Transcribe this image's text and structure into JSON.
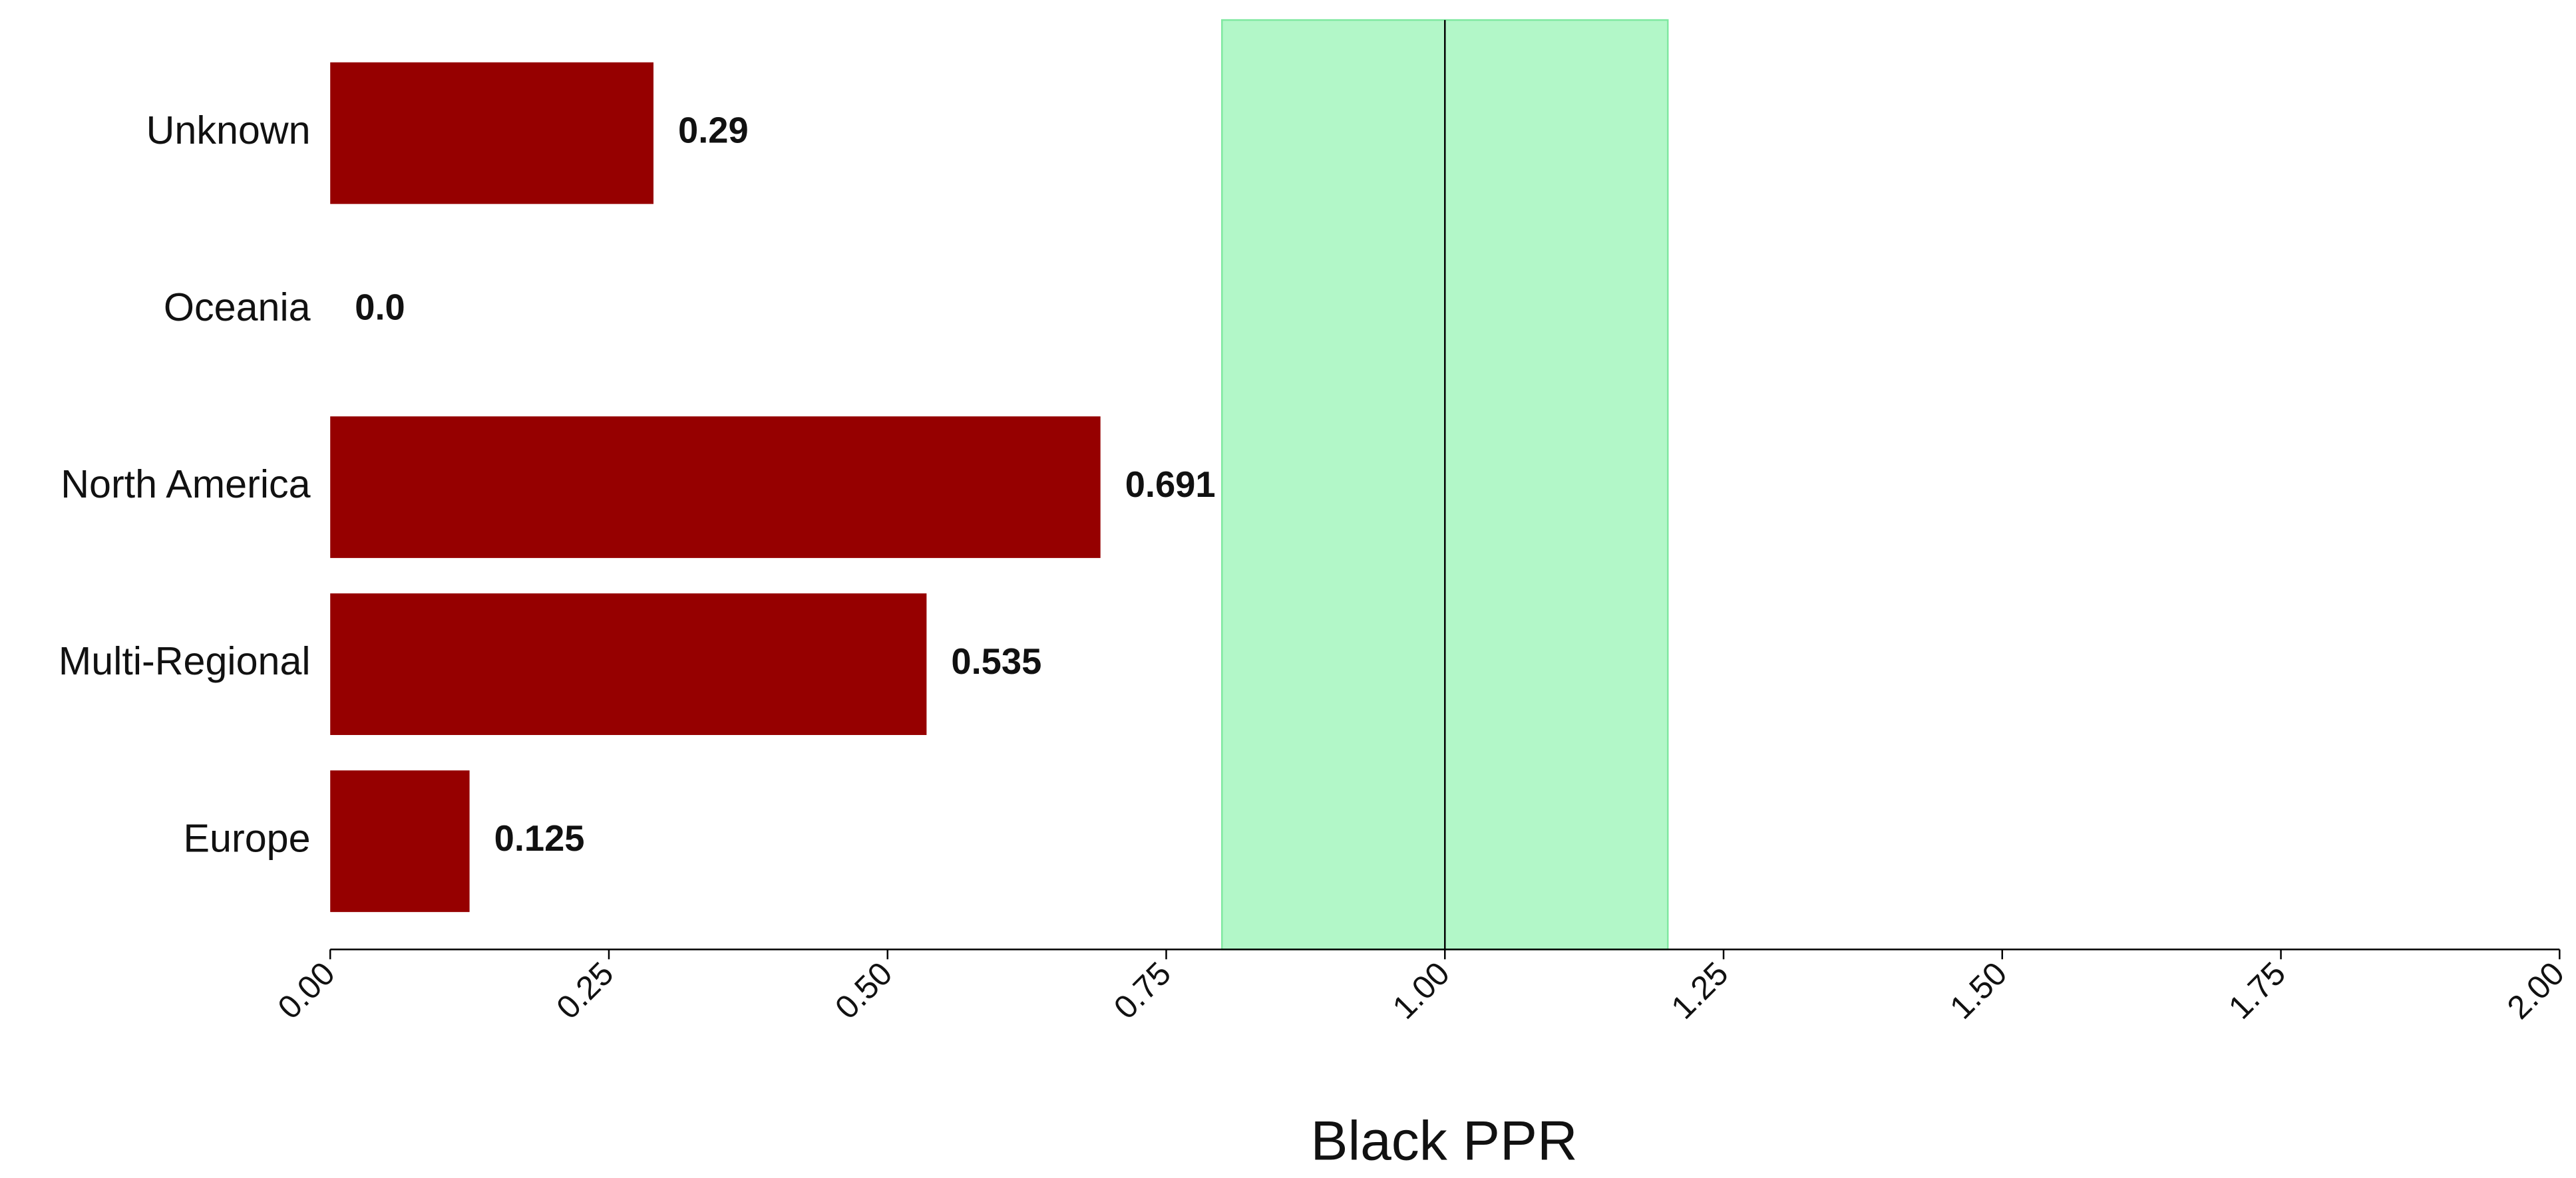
{
  "chart_data": {
    "type": "barh",
    "xlabel": "Black PPR",
    "categories": [
      "Europe",
      "Multi-Regional",
      "North America",
      "Oceania",
      "Unknown"
    ],
    "values": [
      0.125,
      0.535,
      0.691,
      0.0,
      0.29
    ],
    "value_labels": [
      "0.125",
      "0.535",
      "0.691",
      "0.0",
      "0.29"
    ],
    "color": "#960000",
    "xlim": [
      0,
      2
    ],
    "xticks": [
      {
        "value": 0,
        "label": "0.00"
      },
      {
        "value": 0.25,
        "label": "0.25"
      },
      {
        "value": 0.5,
        "label": "0.50"
      },
      {
        "value": 0.75,
        "label": "0.75"
      },
      {
        "value": 1,
        "label": "1.00"
      },
      {
        "value": 1.25,
        "label": "1.25"
      },
      {
        "value": 1.5,
        "label": "1.50"
      },
      {
        "value": 1.75,
        "label": "1.75"
      },
      {
        "value": 2,
        "label": "2.00"
      }
    ],
    "reference_band": [
      0.8,
      1.2
    ],
    "reference_band_color": "#b2f7c8",
    "reference_line": 1.0
  }
}
